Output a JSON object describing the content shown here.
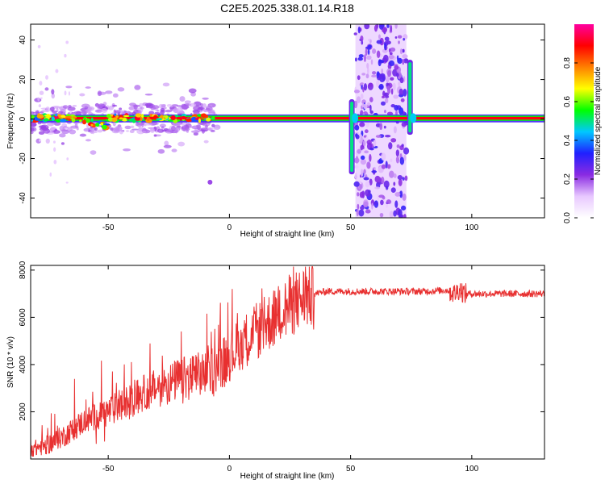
{
  "figure_title": "C2E5.2025.338.01.14.R18",
  "chart_data": [
    {
      "type": "heatmap",
      "name": "spectrogram",
      "xlabel": "Height of straight line (km)",
      "ylabel": "Frequency (Hz)",
      "xlim": [
        -82,
        130
      ],
      "ylim": [
        -50,
        48
      ],
      "xticks": [
        -50,
        0,
        50,
        100
      ],
      "yticks": [
        -40,
        -20,
        0,
        20,
        40
      ],
      "colorbar": {
        "label": "Normalized spectral amplitude",
        "range": [
          0,
          1
        ],
        "ticks": [
          0.0,
          0.2,
          0.4,
          0.6,
          0.8
        ],
        "tick_labels": [
          "0.0",
          "0.2",
          "0.4",
          "0.6",
          "0.8"
        ],
        "colormap": [
          "#ffffff",
          "#e8c8ff",
          "#8a2be2",
          "#2020ff",
          "#00c8ff",
          "#00ff00",
          "#ffff00",
          "#ff8000",
          "#ff0000",
          "#ff00a0"
        ]
      },
      "features": [
        {
          "name": "main-line",
          "freq_hz": 0.5,
          "x_range": [
            -82,
            130
          ],
          "amplitude": 1.0
        },
        {
          "name": "noise-band",
          "x_range": [
            52,
            73
          ],
          "freq_range": [
            -50,
            48
          ],
          "amplitude": 0.25
        },
        {
          "name": "edge-feature-left",
          "x": 50.5,
          "freq_range": [
            -28,
            10
          ],
          "amplitude": 0.5
        },
        {
          "name": "edge-feature-right",
          "x": 74.5,
          "freq_range": [
            -8,
            30
          ],
          "amplitude": 0.5
        },
        {
          "name": "isolated-blob",
          "x": -8,
          "freq_hz": -32,
          "amplitude": 0.2
        }
      ]
    },
    {
      "type": "line",
      "name": "snr",
      "xlabel": "Height of straight line (km)",
      "ylabel": "SNR (10 * v/v)",
      "xlim": [
        -82,
        130
      ],
      "ylim": [
        0,
        8200
      ],
      "xticks": [
        -50,
        0,
        50,
        100
      ],
      "yticks": [
        2000,
        4000,
        6000,
        8000
      ],
      "color": "#e83030",
      "series": [
        {
          "name": "SNR",
          "x": [
            -82,
            -75,
            -68,
            -60,
            -50,
            -42,
            -35,
            -25,
            -20,
            -15,
            -10,
            -5,
            -2,
            0,
            5,
            10,
            15,
            20,
            25,
            30,
            35,
            40,
            50,
            60,
            70,
            80,
            90,
            93,
            95,
            97,
            100,
            110,
            120,
            130
          ],
          "y": [
            400,
            600,
            1000,
            1600,
            2000,
            2400,
            2800,
            3200,
            3400,
            3500,
            3600,
            3900,
            4200,
            4400,
            4900,
            5300,
            5700,
            6100,
            6500,
            6800,
            7000,
            7100,
            7100,
            7100,
            7100,
            7100,
            7150,
            7000,
            7200,
            7000,
            7000,
            7000,
            7000,
            7000
          ]
        }
      ]
    }
  ]
}
